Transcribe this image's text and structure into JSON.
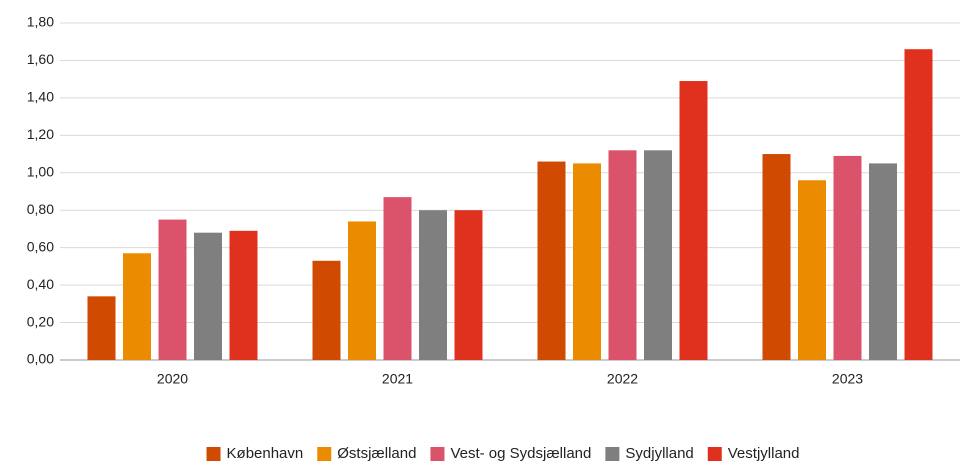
{
  "chart_data": {
    "type": "bar",
    "categories": [
      "2020",
      "2021",
      "2022",
      "2023"
    ],
    "series": [
      {
        "name": "København",
        "color": "#d04a02",
        "values": [
          0.34,
          0.53,
          1.06,
          1.1
        ]
      },
      {
        "name": "Østsjælland",
        "color": "#eb8c00",
        "values": [
          0.57,
          0.74,
          1.05,
          0.96
        ]
      },
      {
        "name": "Vest- og Sydsjælland",
        "color": "#db536a",
        "values": [
          0.75,
          0.87,
          1.12,
          1.09
        ]
      },
      {
        "name": "Sydjylland",
        "color": "#7f7f7f",
        "values": [
          0.68,
          0.8,
          1.12,
          1.05
        ]
      },
      {
        "name": "Vestjylland",
        "color": "#e0301e",
        "values": [
          0.69,
          0.8,
          1.49,
          1.66
        ]
      }
    ],
    "ylim": [
      0,
      1.8
    ],
    "yticks": [
      {
        "value": 0,
        "label": "0,00"
      },
      {
        "value": 0.2,
        "label": "0,20"
      },
      {
        "value": 0.4,
        "label": "0,40"
      },
      {
        "value": 0.6,
        "label": "0,60"
      },
      {
        "value": 0.8,
        "label": "0,80"
      },
      {
        "value": 1.0,
        "label": "1,00"
      },
      {
        "value": 1.2,
        "label": "1,20"
      },
      {
        "value": 1.4,
        "label": "1,40"
      },
      {
        "value": 1.6,
        "label": "1,60"
      },
      {
        "value": 1.8,
        "label": "1,80"
      }
    ],
    "grid": true,
    "legend": "bottom"
  }
}
